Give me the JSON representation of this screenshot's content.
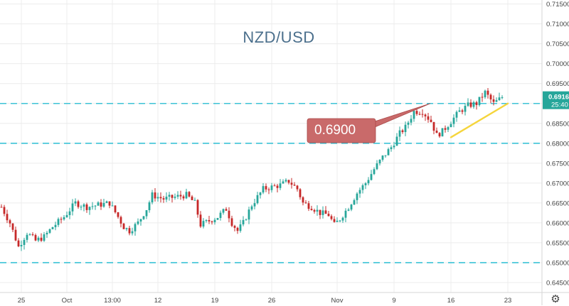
{
  "chart_data": {
    "type": "candlestick",
    "title": "NZD/USD",
    "ylim": [
      0.6425,
      0.716
    ],
    "y_ticks": [
      0.645,
      0.65,
      0.655,
      0.66,
      0.665,
      0.67,
      0.675,
      0.68,
      0.685,
      0.69,
      0.695,
      0.7,
      0.705,
      0.71,
      0.715
    ],
    "y_tick_labels": [
      "0.64500",
      "0.65000",
      "0.65500",
      "0.66000",
      "0.66500",
      "0.67000",
      "0.67500",
      "0.68000",
      "0.68500",
      "0.69000",
      "0.69500",
      "0.70000",
      "0.70500",
      "0.71000",
      "0.71500"
    ],
    "x_tick_labels": [
      {
        "label": "25",
        "bar": 7
      },
      {
        "label": "Oct",
        "bar": 23
      },
      {
        "label": "13:00",
        "bar": 39
      },
      {
        "label": "12",
        "bar": 55
      },
      {
        "label": "19",
        "bar": 75
      },
      {
        "label": "26",
        "bar": 95
      },
      {
        "label": "Nov",
        "bar": 118
      },
      {
        "label": "9",
        "bar": 138
      },
      {
        "label": "16",
        "bar": 158
      },
      {
        "label": "23",
        "bar": 178
      }
    ],
    "bar_count": 178,
    "close_path": [
      [
        0,
        0.664
      ],
      [
        3,
        0.66
      ],
      [
        6,
        0.654
      ],
      [
        9,
        0.6575
      ],
      [
        12,
        0.6555
      ],
      [
        15,
        0.6565
      ],
      [
        18,
        0.659
      ],
      [
        22,
        0.6615
      ],
      [
        26,
        0.665
      ],
      [
        30,
        0.664
      ],
      [
        34,
        0.6645
      ],
      [
        38,
        0.665
      ],
      [
        41,
        0.6615
      ],
      [
        43,
        0.659
      ],
      [
        45,
        0.658
      ],
      [
        48,
        0.66
      ],
      [
        51,
        0.6635
      ],
      [
        53,
        0.667
      ],
      [
        57,
        0.666
      ],
      [
        61,
        0.6665
      ],
      [
        65,
        0.667
      ],
      [
        68,
        0.665
      ],
      [
        70,
        0.6595
      ],
      [
        73,
        0.6605
      ],
      [
        76,
        0.6615
      ],
      [
        79,
        0.6635
      ],
      [
        81,
        0.66
      ],
      [
        83,
        0.658
      ],
      [
        85,
        0.66
      ],
      [
        88,
        0.6645
      ],
      [
        92,
        0.6685
      ],
      [
        95,
        0.669
      ],
      [
        98,
        0.6695
      ],
      [
        101,
        0.6705
      ],
      [
        104,
        0.6685
      ],
      [
        106,
        0.665
      ],
      [
        109,
        0.664
      ],
      [
        112,
        0.6625
      ],
      [
        115,
        0.662
      ],
      [
        117,
        0.6595
      ],
      [
        119,
        0.661
      ],
      [
        122,
        0.664
      ],
      [
        125,
        0.6675
      ],
      [
        128,
        0.67
      ],
      [
        131,
        0.6735
      ],
      [
        134,
        0.6765
      ],
      [
        137,
        0.679
      ],
      [
        140,
        0.6825
      ],
      [
        142,
        0.684
      ],
      [
        145,
        0.688
      ],
      [
        148,
        0.688
      ],
      [
        151,
        0.6855
      ],
      [
        153,
        0.682
      ],
      [
        155,
        0.683
      ],
      [
        158,
        0.6855
      ],
      [
        161,
        0.688
      ],
      [
        164,
        0.6895
      ],
      [
        167,
        0.69
      ],
      [
        170,
        0.6928
      ],
      [
        173,
        0.69
      ],
      [
        176,
        0.6916
      ]
    ],
    "horizontal_lines": [
      0.69,
      0.68,
      0.65
    ],
    "trendline": {
      "from": [
        158,
        0.6815
      ],
      "to": [
        178,
        0.69
      ],
      "color": "#f5d53c"
    },
    "callout": {
      "text": "0.6900",
      "color": "#c96a6a"
    },
    "last_price": {
      "value": "0.69162",
      "countdown": "25:40",
      "color": "#26a69a"
    },
    "colors": {
      "up": "#26a69a",
      "down": "#c62828",
      "line_dashed": "#3cc3d6",
      "grid": "#ececec"
    },
    "grid": true
  }
}
